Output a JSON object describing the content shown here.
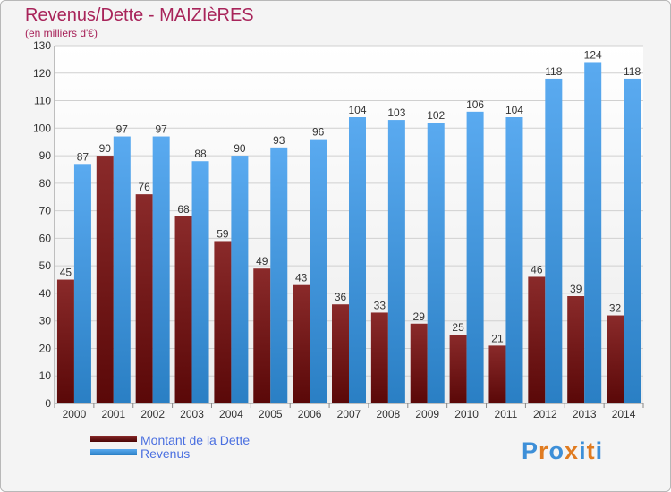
{
  "chart_data": {
    "type": "bar",
    "title": "Revenus/Dette - MAIZIèRES",
    "subtitle": "(en milliers d'€)",
    "categories": [
      "2000",
      "2001",
      "2002",
      "2003",
      "2004",
      "2005",
      "2006",
      "2007",
      "2008",
      "2009",
      "2010",
      "2011",
      "2012",
      "2013",
      "2014"
    ],
    "series": [
      {
        "name": "Montant de la Dette",
        "color": "#7a1c1c",
        "values": [
          45,
          90,
          76,
          68,
          59,
          49,
          43,
          36,
          33,
          29,
          25,
          21,
          46,
          39,
          32
        ]
      },
      {
        "name": "Revenus",
        "color": "#3d94dc",
        "values": [
          87,
          97,
          97,
          88,
          90,
          93,
          96,
          104,
          103,
          102,
          106,
          104,
          118,
          124,
          118
        ]
      }
    ],
    "ylim": [
      0,
      130
    ],
    "yticks": [
      0,
      10,
      20,
      30,
      40,
      50,
      60,
      70,
      80,
      90,
      100,
      110,
      120,
      130
    ],
    "grid": true,
    "legend_position": "bottom-left"
  },
  "brand": {
    "text": "Proxiti",
    "letter_colors": [
      "#3d8fd8",
      "#e07b20",
      "#3d8fd8",
      "#e07b20",
      "#3d8fd8",
      "#e07b20",
      "#3d8fd8"
    ]
  }
}
